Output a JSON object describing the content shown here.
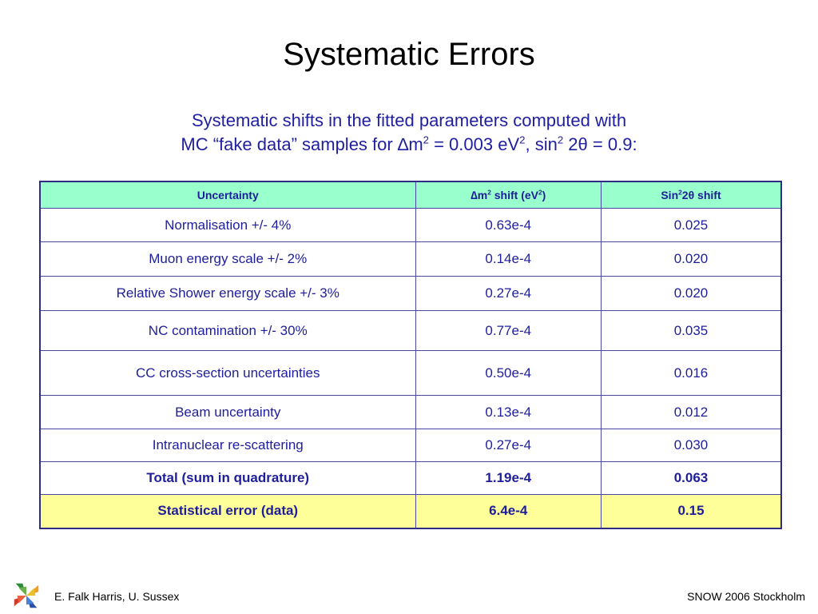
{
  "title": "Systematic Errors",
  "subtitle": {
    "line1": "Systematic shifts in the fitted parameters computed with",
    "l2_a": "MC “fake data” samples for ",
    "delta": "∆",
    "l2_m": "m",
    "l2_sup1": "2",
    "l2_b": " = 0.003 eV",
    "l2_sup2": "2",
    "l2_c": ", sin",
    "l2_sup3": "2",
    "l2_d": " 2",
    "theta": "θ",
    "l2_e": " = 0.9:"
  },
  "table": {
    "headers": {
      "col1": "Uncertainty",
      "col2_delta": "∆",
      "col2_a": "m",
      "col2_sup": "2",
      "col2_b": " shift (eV",
      "col2_sup2": "2",
      "col2_c": ")",
      "col3_a": "Sin",
      "col3_sup": "2",
      "col3_b": "2",
      "col3_theta": "θ",
      "col3_c": " shift"
    },
    "rows": [
      {
        "uncertainty": "Normalisation +/- 4%",
        "dm2": "0.63e-4",
        "sin2": "0.025"
      },
      {
        "uncertainty": "Muon energy scale +/- 2%",
        "dm2": "0.14e-4",
        "sin2": "0.020"
      },
      {
        "uncertainty": "Relative Shower energy scale +/- 3%",
        "dm2": "0.27e-4",
        "sin2": "0.020"
      },
      {
        "uncertainty": "NC contamination +/- 30%",
        "dm2": "0.77e-4",
        "sin2": "0.035"
      },
      {
        "uncertainty": "CC cross-section uncertainties",
        "dm2": "0.50e-4",
        "sin2": "0.016"
      },
      {
        "uncertainty": "Beam uncertainty",
        "dm2": "0.13e-4",
        "sin2": "0.012"
      },
      {
        "uncertainty": "Intranuclear re-scattering",
        "dm2": "0.27e-4",
        "sin2": "0.030"
      },
      {
        "uncertainty": "Total (sum in quadrature)",
        "dm2": "1.19e-4",
        "sin2": "0.063"
      },
      {
        "uncertainty": "Statistical error (data)",
        "dm2": "6.4e-4",
        "sin2": "0.15"
      }
    ]
  },
  "colors": {
    "header_bg": "#99ffcc",
    "stat_row_bg": "#ffff99",
    "text_blue": "#1e1e9a",
    "border": "#2e2e80"
  },
  "logo": {
    "icon": "snow-conference-logo-icon"
  },
  "footer": {
    "left": "E. Falk Harris, U. Sussex",
    "right": "SNOW 2006 Stockholm"
  }
}
